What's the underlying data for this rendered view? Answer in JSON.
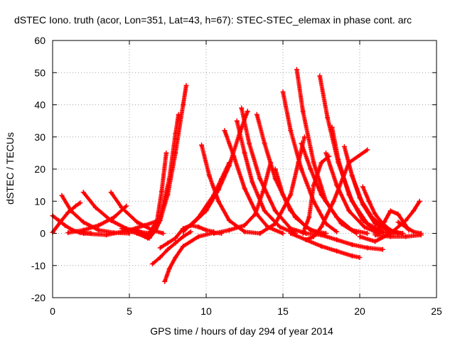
{
  "chart_data": {
    "type": "scatter",
    "title": "dSTEC Iono. truth (acor, Lon=351, Lat=43, h=67): STEC-STEC_elemax in phase cont. arc",
    "xlabel": "GPS time / hours of day 294 of year 2014",
    "ylabel": "dSTEC  / TECUs",
    "xlim": [
      0,
      25
    ],
    "ylim": [
      -20,
      60
    ],
    "xticks": [
      0,
      5,
      10,
      15,
      20,
      25
    ],
    "yticks": [
      -20,
      -10,
      0,
      10,
      20,
      30,
      40,
      50,
      60
    ],
    "grid": true,
    "marker": "plus",
    "color": "#ff0000",
    "series": [
      {
        "x": [
          0.0,
          0.5,
          1.0,
          1.5,
          1.8
        ],
        "y": [
          0.3,
          3.5,
          6.5,
          8.5,
          9.5
        ]
      },
      {
        "x": [
          0.0,
          0.4,
          0.8,
          1.3,
          1.8,
          2.5
        ],
        "y": [
          5.5,
          4.0,
          2.5,
          1.0,
          0.2,
          0.0
        ]
      },
      {
        "x": [
          0.6,
          1.2,
          2.0,
          3.0,
          4.0,
          5.0
        ],
        "y": [
          11.8,
          7.0,
          3.5,
          1.0,
          0.2,
          0.0
        ]
      },
      {
        "x": [
          2.0,
          2.8,
          3.8,
          4.8,
          5.8,
          6.5
        ],
        "y": [
          12.8,
          8.0,
          4.0,
          1.5,
          0.3,
          0.0
        ]
      },
      {
        "x": [
          1.0,
          2.0,
          3.0,
          4.0,
          4.8
        ],
        "y": [
          0.2,
          1.0,
          2.5,
          5.0,
          8.5
        ]
      },
      {
        "x": [
          3.8,
          4.5,
          5.5,
          6.5,
          7.2
        ],
        "y": [
          12.8,
          8.0,
          3.5,
          1.0,
          0.0
        ]
      },
      {
        "x": [
          2.0,
          3.5,
          5.0,
          6.0,
          6.8
        ],
        "y": [
          0.0,
          -0.5,
          1.0,
          2.5,
          3.8
        ]
      },
      {
        "x": [
          4.5,
          5.5,
          6.0,
          6.3,
          6.7,
          7.0,
          7.5,
          8.0,
          8.5,
          8.7
        ],
        "y": [
          1.5,
          0.0,
          -1.0,
          -1.5,
          1.0,
          4.0,
          12.0,
          25.0,
          40.0,
          46.0
        ]
      },
      {
        "x": [
          5.5,
          6.2,
          6.8,
          7.1,
          7.4
        ],
        "y": [
          1.0,
          -0.8,
          4.0,
          13.0,
          25.0
        ]
      },
      {
        "x": [
          5.5,
          6.2,
          6.7,
          7.0,
          7.6,
          8.0,
          8.2
        ],
        "y": [
          0.5,
          -1.5,
          1.0,
          5.0,
          17.0,
          31.0,
          37.0
        ]
      },
      {
        "x": [
          6.5,
          7.0,
          7.5,
          8.0,
          8.5,
          9.0
        ],
        "y": [
          -9.5,
          -7.5,
          -5.0,
          -3.0,
          -1.0,
          0.5
        ]
      },
      {
        "x": [
          7.0,
          7.5,
          8.0,
          8.5,
          9.0,
          9.5,
          10.0,
          10.5
        ],
        "y": [
          -4.5,
          -3.0,
          -1.5,
          1.5,
          2.5,
          2.0,
          1.0,
          0.5
        ]
      },
      {
        "x": [
          7.3,
          7.6,
          8.0,
          8.5,
          9.5,
          10.5,
          11.0
        ],
        "y": [
          -15.0,
          -11.0,
          -7.5,
          -4.0,
          -1.0,
          0.2,
          0.0
        ]
      },
      {
        "x": [
          9.0,
          10.0,
          10.8,
          11.5,
          12.2,
          12.7
        ],
        "y": [
          2.5,
          7.0,
          13.5,
          21.0,
          31.5,
          38.0
        ]
      },
      {
        "x": [
          9.7,
          10.2,
          10.8,
          11.5,
          12.5,
          13.5
        ],
        "y": [
          27.5,
          18.0,
          10.0,
          4.0,
          0.5,
          0.0
        ]
      },
      {
        "x": [
          11.2,
          11.8,
          12.5,
          13.3,
          14.0,
          15.0
        ],
        "y": [
          32.0,
          24.0,
          14.0,
          6.0,
          2.0,
          0.0
        ]
      },
      {
        "x": [
          12.0,
          12.5,
          13.0,
          13.8,
          14.8,
          15.8
        ],
        "y": [
          35.0,
          25.0,
          16.0,
          7.0,
          2.0,
          0.0
        ]
      },
      {
        "x": [
          12.3,
          12.8,
          13.5,
          14.5,
          15.5,
          16.5
        ],
        "y": [
          39.0,
          28.0,
          17.0,
          7.0,
          1.5,
          0.0
        ]
      },
      {
        "x": [
          8.5,
          9.5,
          10.5,
          11.0,
          11.5
        ],
        "y": [
          0.5,
          5.0,
          12.0,
          17.0,
          22.0
        ]
      },
      {
        "x": [
          13.3,
          13.8,
          14.5,
          15.5,
          16.5,
          17.3
        ],
        "y": [
          37.0,
          28.0,
          17.0,
          7.0,
          2.0,
          0.0
        ]
      },
      {
        "x": [
          10.5,
          11.5,
          12.5,
          13.2,
          13.7,
          14.2
        ],
        "y": [
          0.0,
          1.0,
          2.5,
          6.0,
          13.0,
          22.0
        ]
      },
      {
        "x": [
          14.5,
          15.0,
          15.8,
          16.8,
          17.8
        ],
        "y": [
          20.0,
          12.0,
          5.0,
          1.0,
          0.0
        ]
      },
      {
        "x": [
          15.0,
          15.5,
          16.2,
          17.0,
          17.8,
          18.5
        ],
        "y": [
          44.0,
          32.0,
          20.0,
          10.0,
          3.0,
          0.5
        ]
      },
      {
        "x": [
          13.5,
          14.5,
          15.5,
          16.0,
          16.4
        ],
        "y": [
          0.0,
          3.0,
          12.0,
          22.0,
          30.0
        ]
      },
      {
        "x": [
          15.9,
          16.3,
          17.0,
          17.8,
          18.8,
          19.8
        ],
        "y": [
          51.0,
          38.0,
          22.0,
          10.0,
          3.0,
          0.0
        ]
      },
      {
        "x": [
          16.2,
          16.8,
          17.5,
          18.5,
          19.5,
          20.5
        ],
        "y": [
          28.0,
          20.0,
          12.0,
          5.0,
          1.0,
          0.0
        ]
      },
      {
        "x": [
          16.3,
          16.7,
          17.0,
          17.5,
          18.0
        ],
        "y": [
          0.0,
          5.0,
          15.0,
          22.0,
          24.0
        ]
      },
      {
        "x": [
          16.5,
          17.0,
          17.5,
          18.3,
          19.3,
          20.5
        ],
        "y": [
          -2.0,
          -1.0,
          2.0,
          10.0,
          22.0,
          26.0
        ]
      },
      {
        "x": [
          17.4,
          17.9,
          18.6,
          19.5,
          20.5,
          21.5
        ],
        "y": [
          49.0,
          36.0,
          22.0,
          10.0,
          3.0,
          0.5
        ]
      },
      {
        "x": [
          17.8,
          18.5,
          19.3,
          20.3,
          21.3
        ],
        "y": [
          25.0,
          15.0,
          7.0,
          2.0,
          0.0
        ]
      },
      {
        "x": [
          18.2,
          18.6,
          19.3,
          20.2,
          21.2,
          22.2
        ],
        "y": [
          33.0,
          23.0,
          12.0,
          4.0,
          0.5,
          0.0
        ]
      },
      {
        "x": [
          19.0,
          19.5,
          20.2,
          21.0,
          22.0,
          22.8
        ],
        "y": [
          27.0,
          18.0,
          9.0,
          3.0,
          0.5,
          0.0
        ]
      },
      {
        "x": [
          19.5,
          20.0,
          20.8,
          21.8,
          22.8
        ],
        "y": [
          18.0,
          11.0,
          5.0,
          1.0,
          0.0
        ]
      },
      {
        "x": [
          15.5,
          16.5,
          17.5,
          18.5,
          19.5,
          20.0
        ],
        "y": [
          0.0,
          -2.0,
          -4.0,
          -5.5,
          -7.0,
          -7.5
        ]
      },
      {
        "x": [
          16.5,
          17.5,
          18.5,
          19.5,
          20.5,
          21.5
        ],
        "y": [
          0.0,
          -0.5,
          -2.0,
          -3.5,
          -4.5,
          -5.0
        ]
      },
      {
        "x": [
          20.2,
          20.6,
          21.0,
          21.5,
          22.0,
          22.5
        ],
        "y": [
          14.5,
          10.0,
          6.0,
          3.0,
          1.0,
          0.0
        ]
      },
      {
        "x": [
          20.0,
          21.0,
          22.0,
          23.0,
          23.5,
          23.9
        ],
        "y": [
          -1.0,
          -2.5,
          0.0,
          4.0,
          7.0,
          10.0
        ]
      },
      {
        "x": [
          21.0,
          21.6,
          22.0,
          22.5,
          23.2
        ],
        "y": [
          0.0,
          3.5,
          7.0,
          6.0,
          1.0
        ]
      },
      {
        "x": [
          22.5,
          23.0,
          23.5,
          24.0
        ],
        "y": [
          3.5,
          2.0,
          0.5,
          0.0
        ]
      },
      {
        "x": [
          21.0,
          22.0,
          23.0,
          24.0
        ],
        "y": [
          -0.5,
          -1.0,
          -1.0,
          -0.5
        ]
      }
    ]
  }
}
